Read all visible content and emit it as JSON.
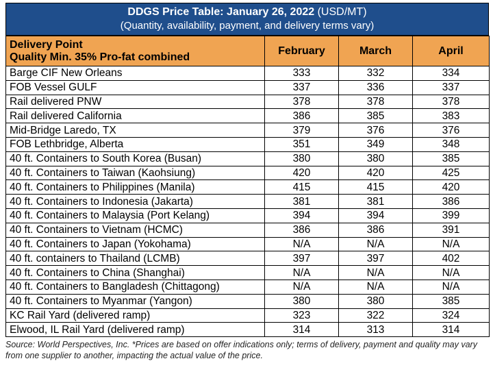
{
  "title": {
    "main": "DDGS Price Table: January 26, 2022",
    "unit": "(USD/MT)",
    "subtitle": "(Quantity, availability, payment, and delivery terms vary)"
  },
  "header": {
    "col1_line1": "Delivery Point",
    "col1_line2": "Quality Min. 35% Pro-fat combined",
    "months": [
      "February",
      "March",
      "April"
    ]
  },
  "rows": [
    {
      "location": "Barge CIF New Orleans",
      "values": [
        "333",
        "332",
        "334"
      ]
    },
    {
      "location": "FOB Vessel GULF",
      "values": [
        "337",
        "336",
        "337"
      ]
    },
    {
      "location": "Rail delivered PNW",
      "values": [
        "378",
        "378",
        "378"
      ]
    },
    {
      "location": "Rail delivered California",
      "values": [
        "386",
        "385",
        "383"
      ]
    },
    {
      "location": "Mid-Bridge Laredo, TX",
      "values": [
        "379",
        "376",
        "376"
      ]
    },
    {
      "location": "FOB Lethbridge, Alberta",
      "values": [
        "351",
        "349",
        "348"
      ]
    },
    {
      "location": "40 ft. Containers to South Korea (Busan)",
      "values": [
        "380",
        "380",
        "385"
      ]
    },
    {
      "location": "40 ft. Containers to Taiwan (Kaohsiung)",
      "values": [
        "420",
        "420",
        "425"
      ]
    },
    {
      "location": "40 ft. Containers to Philippines (Manila)",
      "values": [
        "415",
        "415",
        "420"
      ]
    },
    {
      "location": "40 ft. Containers to Indonesia (Jakarta)",
      "values": [
        "381",
        "381",
        "386"
      ]
    },
    {
      "location": "40 ft. Containers to Malaysia (Port Kelang)",
      "values": [
        "394",
        "394",
        "399"
      ]
    },
    {
      "location": "40 ft. Containers to Vietnam (HCMC)",
      "values": [
        "386",
        "386",
        "391"
      ]
    },
    {
      "location": "40 ft. Containers to Japan (Yokohama)",
      "values": [
        "N/A",
        "N/A",
        "N/A"
      ]
    },
    {
      "location": "40 ft. containers to Thailand (LCMB)",
      "values": [
        "397",
        "397",
        "402"
      ]
    },
    {
      "location": "40 ft. Containers to China (Shanghai)",
      "values": [
        "N/A",
        "N/A",
        "N/A"
      ]
    },
    {
      "location": "40 ft. Containers to Bangladesh (Chittagong)",
      "values": [
        "N/A",
        "N/A",
        "N/A"
      ]
    },
    {
      "location": "40 ft. Containers to Myanmar (Yangon)",
      "values": [
        "380",
        "380",
        "385"
      ]
    },
    {
      "location": "KC Rail Yard (delivered ramp)",
      "values": [
        "323",
        "322",
        "324"
      ]
    },
    {
      "location": "Elwood, IL Rail Yard (delivered ramp)",
      "values": [
        "314",
        "313",
        "314"
      ]
    }
  ],
  "source": "Source: World Perspectives, Inc. *Prices are based on offer indications only; terms of delivery, payment and quality may vary from one supplier to another, impacting the actual value of the price.",
  "colors": {
    "title_bg": "#1f4e8c",
    "header_bg": "#f0a452"
  }
}
